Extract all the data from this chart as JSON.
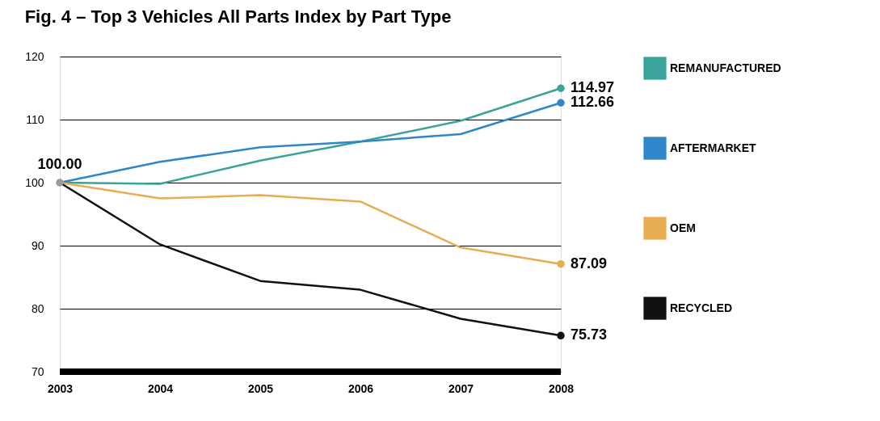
{
  "chart_data": {
    "type": "line",
    "title": "Fig. 4 – Top 3 Vehicles All Parts Index by Part Type",
    "categories": [
      "2003",
      "2004",
      "2005",
      "2006",
      "2007",
      "2008"
    ],
    "series": [
      {
        "name": "REMANUFACTURED",
        "color": "#3aa39a",
        "values": [
          100,
          99.8,
          103.5,
          106.5,
          109.8,
          114.97
        ],
        "value_labels": [
          null,
          null,
          null,
          null,
          null,
          "114.97"
        ]
      },
      {
        "name": "AFTERMARKET",
        "color": "#2f86c8",
        "values": [
          100,
          103.3,
          105.6,
          106.5,
          107.7,
          112.66
        ],
        "value_labels": [
          null,
          null,
          null,
          null,
          null,
          "112.66"
        ]
      },
      {
        "name": "OEM",
        "color": "#e8ad52",
        "values": [
          100,
          97.5,
          98.0,
          97.0,
          89.7,
          87.09
        ],
        "value_labels": [
          null,
          null,
          null,
          null,
          null,
          "87.09"
        ]
      },
      {
        "name": "RECYCLED",
        "color": "#111111",
        "values": [
          100,
          90.2,
          84.4,
          83.0,
          78.4,
          75.73
        ],
        "value_labels": [
          "100.00",
          null,
          null,
          null,
          null,
          "75.73"
        ]
      }
    ],
    "ylim": [
      70,
      120
    ],
    "yticks": [
      70,
      80,
      90,
      100,
      110,
      120
    ],
    "grid": "y",
    "legend": "right",
    "line_style": "solid"
  }
}
